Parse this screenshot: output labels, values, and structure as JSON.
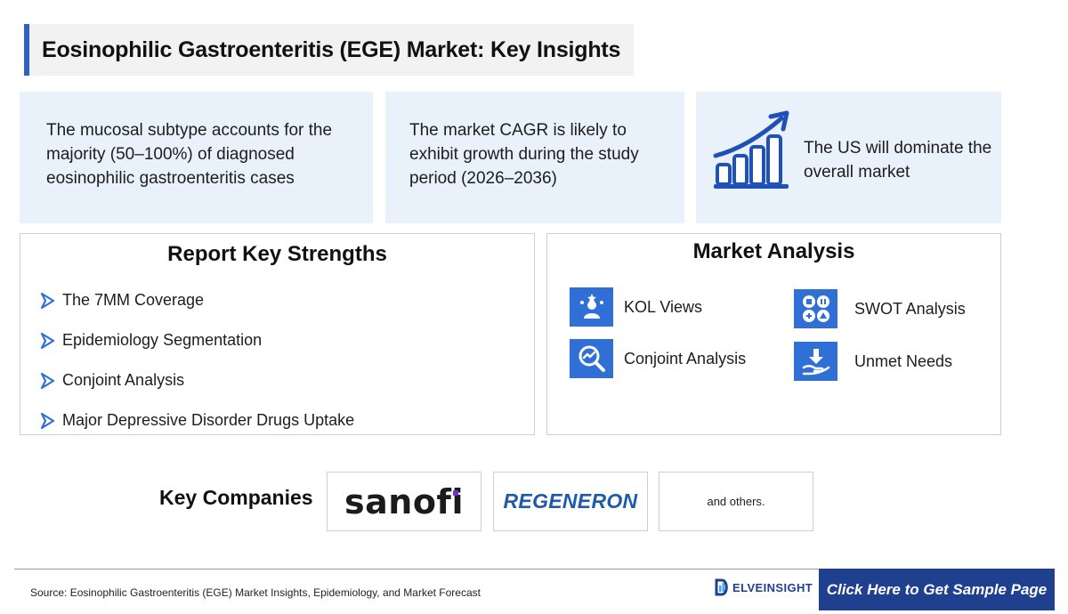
{
  "title": "Eosinophilic Gastroenteritis (EGE) Market: Key Insights",
  "insights": [
    {
      "text": "The mucosal subtype accounts for the majority (50–100%) of diagnosed eosinophilic gastroenteritis cases"
    },
    {
      "text": "The market CAGR is likely to exhibit growth during the study period (2026–2036)"
    },
    {
      "text": "The US will dominate the overall market",
      "icon": "growth-chart-icon"
    }
  ],
  "strengths": {
    "heading": "Report Key Strengths",
    "items": [
      {
        "label": "The 7MM Coverage"
      },
      {
        "label": "Epidemiology Segmentation"
      },
      {
        "label": "Conjoint Analysis"
      },
      {
        "label": "Major Depressive Disorder Drugs Uptake"
      }
    ]
  },
  "market_analysis": {
    "heading": "Market Analysis",
    "items": [
      {
        "label": "KOL Views",
        "icon": "kol-icon"
      },
      {
        "label": "SWOT Analysis",
        "icon": "swot-icon"
      },
      {
        "label": "Conjoint Analysis",
        "icon": "analysis-magnifier-icon"
      },
      {
        "label": "Unmet Needs",
        "icon": "hand-download-icon"
      }
    ]
  },
  "companies": {
    "label": "Key Companies",
    "list": [
      {
        "name": "sanofi"
      },
      {
        "name": "REGENERON"
      },
      {
        "name": "and others."
      }
    ]
  },
  "footer": {
    "source": "Source: Eosinophilic Gastroenteritis (EGE) Market Insights, Epidemiology, and Market Forecast",
    "brand": "ELVEINSIGHT",
    "cta": "Click Here to Get Sample Page"
  },
  "colors": {
    "accent": "#2f6fd6",
    "navy": "#1f3f8f",
    "insight_bg": "#e9f1fb",
    "purple_dot": "#7a2bd8"
  }
}
